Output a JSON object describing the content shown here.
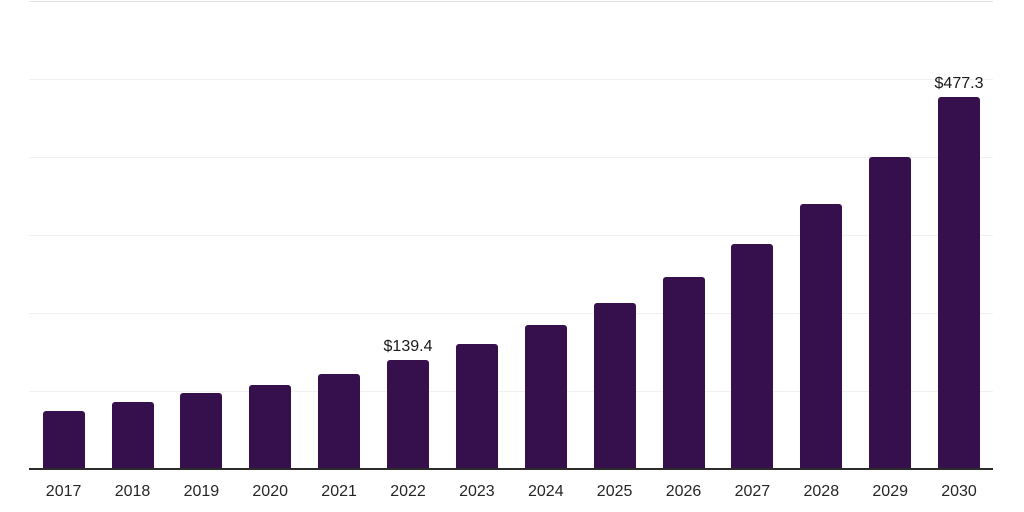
{
  "chart_data": {
    "type": "bar",
    "title": "",
    "xlabel": "",
    "ylabel": "",
    "categories": [
      "2017",
      "2018",
      "2019",
      "2020",
      "2021",
      "2022",
      "2023",
      "2024",
      "2025",
      "2026",
      "2027",
      "2028",
      "2029",
      "2030"
    ],
    "values": [
      75.0,
      86.4,
      97.8,
      107.6,
      121.9,
      139.4,
      160.4,
      184.9,
      212.3,
      246.6,
      288.1,
      339.8,
      400.7,
      477.3
    ],
    "value_prefix": "$",
    "data_labels": [
      {
        "category": "2022",
        "text": "$139.4"
      },
      {
        "category": "2030",
        "text": "$477.3"
      }
    ],
    "ylim": [
      0,
      600
    ],
    "grid_step": 100,
    "grid": "horizontal-only",
    "legend": "none",
    "y_tick_labels_visible": false,
    "colors": {
      "bar": "#36104D",
      "axis_line": "#2b2b2b",
      "gridline": "#f1f1f1",
      "top_border": "#e2e2e2",
      "value_label_text": "#1a1a1a",
      "tick_label_text": "#262626",
      "background": "#ffffff"
    }
  }
}
